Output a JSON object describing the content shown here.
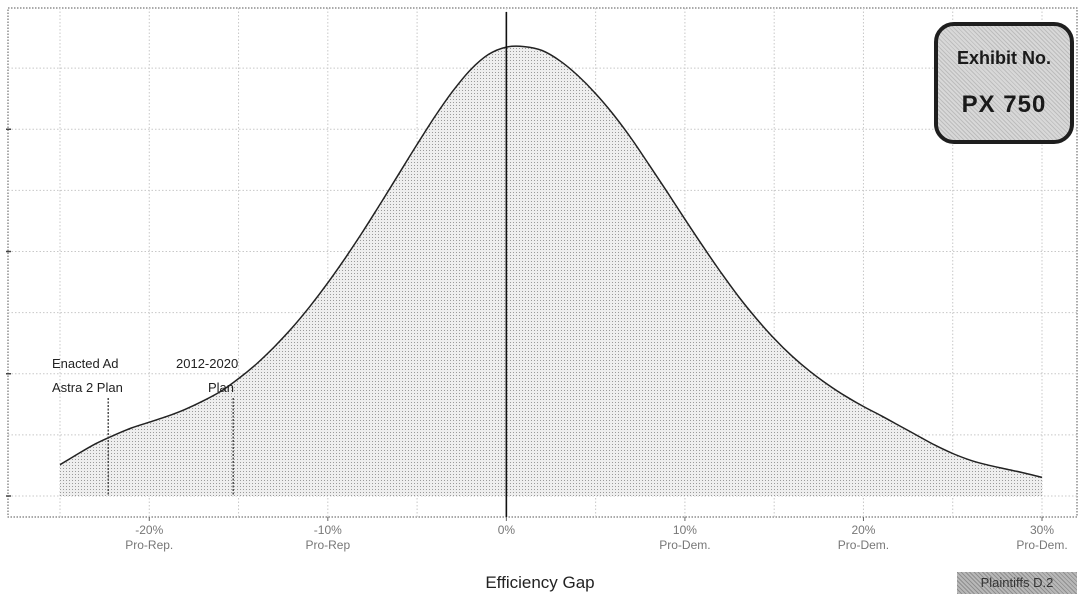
{
  "chart_data": {
    "type": "area",
    "xlabel": "Efficiency Gap",
    "ylabel": "",
    "title": "",
    "xlim": [
      -25,
      30
    ],
    "ylim": [
      0,
      1.0
    ],
    "grid": true,
    "x_ticks": [
      {
        "value": -20,
        "pct": "-20%",
        "side": "Pro-Rep."
      },
      {
        "value": -10,
        "pct": "-10%",
        "side": "Pro-Rep"
      },
      {
        "value": 0,
        "pct": "0%",
        "side": ""
      },
      {
        "value": 10,
        "pct": "10%",
        "side": "Pro-Dem."
      },
      {
        "value": 20,
        "pct": "20%",
        "side": "Pro-Dem."
      },
      {
        "value": 30,
        "pct": "30%",
        "side": "Pro-Dem."
      }
    ],
    "y_ticks": [
      0.0,
      0.25,
      0.5,
      0.75
    ],
    "series": [
      {
        "x": [
          -25,
          -24,
          -23,
          -22,
          -21,
          -20,
          -19,
          -18,
          -17,
          -16,
          -15,
          -14,
          -13,
          -12,
          -11,
          -10,
          -9,
          -8,
          -7,
          -6,
          -5,
          -4,
          -3,
          -2,
          -1,
          0,
          1,
          2,
          3,
          4,
          5,
          6,
          7,
          8,
          9,
          10,
          11,
          12,
          13,
          14,
          15,
          16,
          17,
          18,
          19,
          20,
          21,
          22,
          23,
          24,
          25,
          26,
          27,
          28,
          29,
          30
        ],
        "y": [
          0.064,
          0.086,
          0.107,
          0.124,
          0.139,
          0.151,
          0.163,
          0.177,
          0.194,
          0.214,
          0.24,
          0.27,
          0.305,
          0.344,
          0.388,
          0.436,
          0.488,
          0.543,
          0.601,
          0.66,
          0.719,
          0.776,
          0.828,
          0.872,
          0.903,
          0.918,
          0.919,
          0.911,
          0.89,
          0.86,
          0.823,
          0.78,
          0.731,
          0.677,
          0.622,
          0.566,
          0.511,
          0.458,
          0.408,
          0.363,
          0.322,
          0.286,
          0.255,
          0.228,
          0.204,
          0.183,
          0.164,
          0.144,
          0.124,
          0.104,
          0.087,
          0.073,
          0.063,
          0.055,
          0.047,
          0.038
        ]
      }
    ],
    "reference_line": {
      "x": 0
    },
    "markers": [
      {
        "x": -22.3,
        "label_line1": "Enacted Ad",
        "label_line2": "Astra 2 Plan"
      },
      {
        "x": -15.3,
        "label_line1": "2012-2020",
        "label_line2": "Plan"
      }
    ]
  },
  "exhibit": {
    "label": "Exhibit No.",
    "number": "PX 750"
  },
  "footer_badge": "Plaintiffs D.2"
}
